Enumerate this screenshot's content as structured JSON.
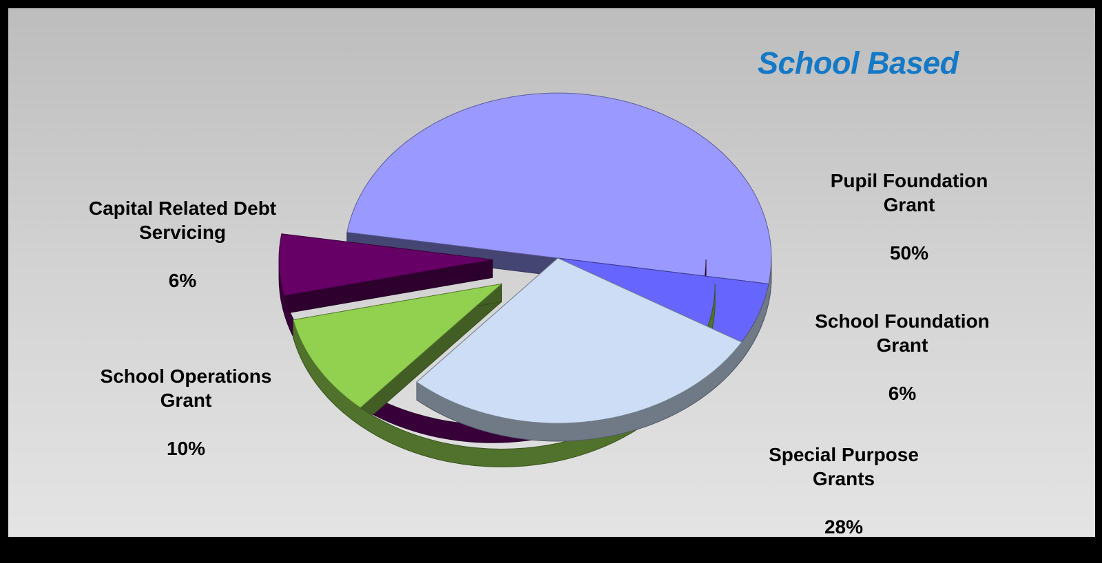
{
  "chart_data": {
    "type": "pie",
    "title": "School Based",
    "slices": [
      {
        "label": "Pupil Foundation\nGrant",
        "value": 50,
        "value_label": "50%",
        "color": "#9999ff"
      },
      {
        "label": "School Foundation\nGrant",
        "value": 6,
        "value_label": "6%",
        "color": "#6666ff"
      },
      {
        "label": "Special Purpose\nGrants",
        "value": 28,
        "value_label": "28%",
        "color": "#ccddf5"
      },
      {
        "label": "School Operations\nGrant",
        "value": 10,
        "value_label": "10%",
        "color": "#92d050"
      },
      {
        "label": "Capital Related Debt\nServicing",
        "value": 6,
        "value_label": "6%",
        "color": "#660066"
      }
    ]
  }
}
